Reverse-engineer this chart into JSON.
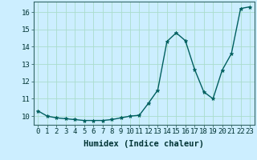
{
  "x": [
    0,
    1,
    2,
    3,
    4,
    5,
    6,
    7,
    8,
    9,
    10,
    11,
    12,
    13,
    14,
    15,
    16,
    17,
    18,
    19,
    20,
    21,
    22,
    23
  ],
  "y": [
    10.3,
    10.0,
    9.9,
    9.85,
    9.8,
    9.75,
    9.75,
    9.75,
    9.8,
    9.9,
    10.0,
    10.05,
    10.75,
    11.5,
    14.3,
    14.8,
    14.35,
    12.7,
    11.4,
    11.0,
    12.65,
    13.6,
    16.2,
    16.3
  ],
  "line_color": "#005f5f",
  "marker": "*",
  "marker_size": 3.5,
  "background_color": "#cceeff",
  "grid_color": "#aaddcc",
  "xlabel": "Humidex (Indice chaleur)",
  "ylim": [
    9.5,
    16.6
  ],
  "xlim": [
    -0.5,
    23.5
  ],
  "yticks": [
    10,
    11,
    12,
    13,
    14,
    15,
    16
  ],
  "xticks": [
    0,
    1,
    2,
    3,
    4,
    5,
    6,
    7,
    8,
    9,
    10,
    11,
    12,
    13,
    14,
    15,
    16,
    17,
    18,
    19,
    20,
    21,
    22,
    23
  ],
  "tick_fontsize": 6.5,
  "xlabel_fontsize": 7.5,
  "linewidth": 1.0
}
